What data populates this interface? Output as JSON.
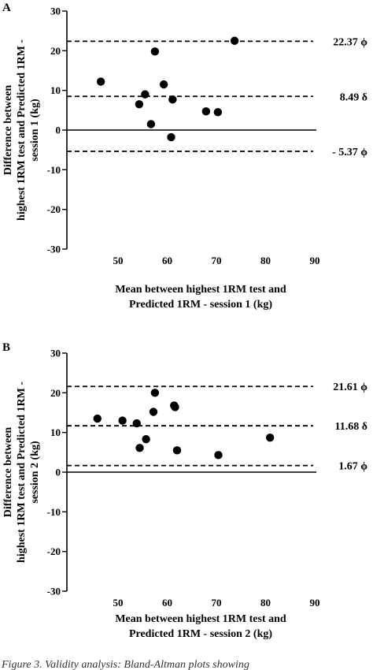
{
  "chart_data": [
    {
      "type": "scatter",
      "panel": "A",
      "xlabel": [
        "Mean between highest 1RM test and",
        "Predicted 1RM - session 1 (kg)"
      ],
      "ylabel": [
        "Difference between",
        "highest 1RM test and Predicted 1RM -",
        "session 1 (kg)"
      ],
      "xlim": [
        40,
        90
      ],
      "ylim": [
        -30,
        30
      ],
      "x_ticks": [
        "50",
        "60",
        "70",
        "80",
        "90"
      ],
      "y_ticks": [
        "-30",
        "-20",
        "-10",
        "0",
        "10",
        "20",
        "30"
      ],
      "points": [
        {
          "x": 46.5,
          "y": 12.2
        },
        {
          "x": 54.3,
          "y": 6.5
        },
        {
          "x": 55.5,
          "y": 9.0
        },
        {
          "x": 56.7,
          "y": 1.5
        },
        {
          "x": 57.5,
          "y": 19.8
        },
        {
          "x": 59.3,
          "y": 11.5
        },
        {
          "x": 60.8,
          "y": -1.8
        },
        {
          "x": 61.1,
          "y": 7.7
        },
        {
          "x": 67.9,
          "y": 4.7
        },
        {
          "x": 70.3,
          "y": 4.5
        },
        {
          "x": 73.7,
          "y": 22.5
        }
      ],
      "reference_lines": [
        {
          "y": 22.37,
          "label": "22.37 ϕ"
        },
        {
          "y": 8.49,
          "label": "8.49 δ"
        },
        {
          "y": -5.37,
          "label": "- 5.37 ϕ"
        }
      ]
    },
    {
      "type": "scatter",
      "panel": "B",
      "xlabel": [
        "Mean between highest 1RM test and",
        "Predicted 1RM - session 2 (kg)"
      ],
      "ylabel": [
        "Difference between",
        "highest 1RM test and Predicted 1RM -",
        "session 2 (kg)"
      ],
      "xlim": [
        40,
        90
      ],
      "ylim": [
        -30,
        30
      ],
      "x_ticks": [
        "50",
        "60",
        "70",
        "80",
        "90"
      ],
      "y_ticks": [
        "-30",
        "-20",
        "-10",
        "0",
        "10",
        "20",
        "30"
      ],
      "points": [
        {
          "x": 45.8,
          "y": 13.5
        },
        {
          "x": 50.9,
          "y": 13.0
        },
        {
          "x": 53.8,
          "y": 12.3
        },
        {
          "x": 54.4,
          "y": 6.1
        },
        {
          "x": 55.7,
          "y": 8.3
        },
        {
          "x": 57.2,
          "y": 15.2
        },
        {
          "x": 57.5,
          "y": 20.0
        },
        {
          "x": 61.4,
          "y": 16.8
        },
        {
          "x": 61.6,
          "y": 16.4
        },
        {
          "x": 62.0,
          "y": 5.5
        },
        {
          "x": 70.4,
          "y": 4.3
        },
        {
          "x": 80.9,
          "y": 8.7
        }
      ],
      "reference_lines": [
        {
          "y": 21.61,
          "label": "21.61 ϕ"
        },
        {
          "y": 11.68,
          "label": "11.68 δ"
        },
        {
          "y": 1.67,
          "label": "1.67 ϕ"
        }
      ]
    }
  ],
  "caption": "Figure 3. Validity analysis: Bland-Altman plots showing"
}
